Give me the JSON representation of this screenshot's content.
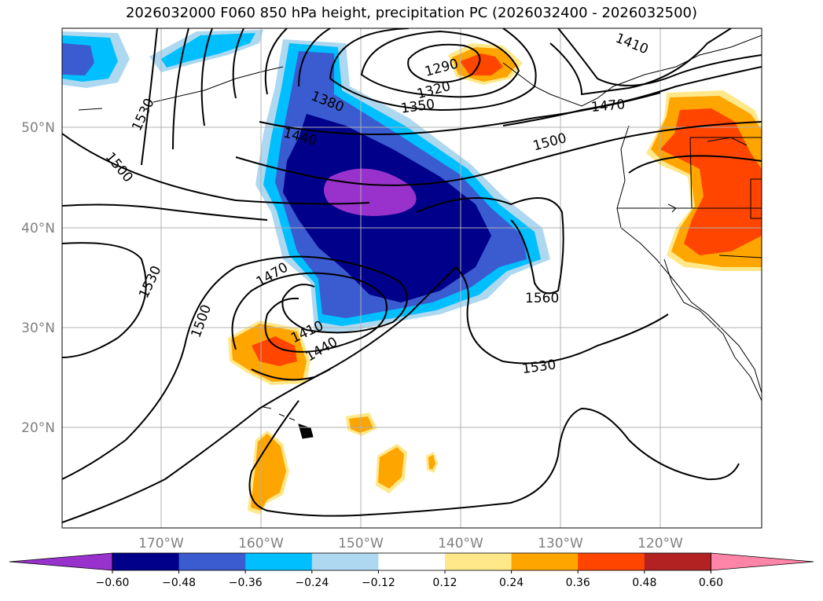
{
  "title": "2026032000 F060 850 hPa height, precipitation PC (2026032400 - 2026032500)",
  "map": {
    "lon_ticks": [
      "170°W",
      "160°W",
      "150°W",
      "140°W",
      "130°W",
      "120°W"
    ],
    "lat_ticks": [
      "50°N",
      "40°N",
      "30°N",
      "20°N"
    ],
    "contour_labels": [
      "1290",
      "1320",
      "1350",
      "1380",
      "1410",
      "1440",
      "1470",
      "1500",
      "1530",
      "1560",
      "1410",
      "1440",
      "1470",
      "1500",
      "1530",
      "1530",
      "1500",
      "1410"
    ],
    "gridline_color": "#b0b0b0"
  },
  "colorbar": {
    "colors": [
      "#9932cc",
      "#00008b",
      "#3b5bd0",
      "#00bfff",
      "#add8f0",
      "#ffffff",
      "#ffe88a",
      "#ffa500",
      "#ff4500",
      "#b22222",
      "#ff85a8"
    ],
    "tick_labels": [
      "−0.60",
      "−0.48",
      "−0.36",
      "−0.24",
      "−0.12",
      "0.12",
      "0.24",
      "0.36",
      "0.48",
      "0.60"
    ]
  }
}
